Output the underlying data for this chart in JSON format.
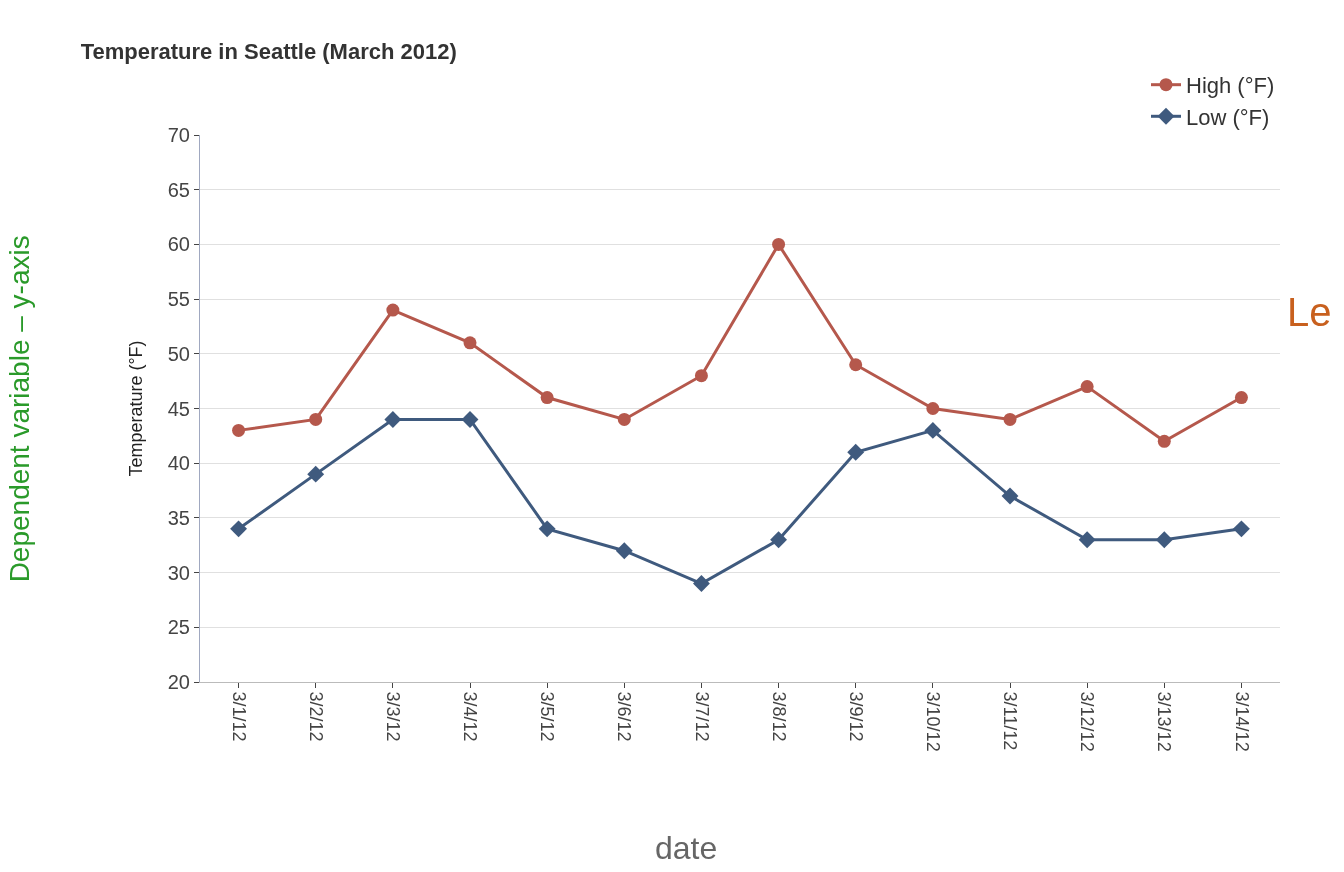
{
  "chart_data": {
    "type": "line",
    "title": "Temperature in Seattle (March 2012)",
    "ylabel": "Temperature (°F)",
    "categories": [
      "3/1/12",
      "3/2/12",
      "3/3/12",
      "3/4/12",
      "3/5/12",
      "3/6/12",
      "3/7/12",
      "3/8/12",
      "3/9/12",
      "3/10/12",
      "3/11/12",
      "3/12/12",
      "3/13/12",
      "3/14/12"
    ],
    "series": [
      {
        "name": "High (°F)",
        "color": "#b5584c",
        "marker": "circle",
        "values": [
          43,
          44,
          54,
          51,
          46,
          44,
          48,
          60,
          49,
          45,
          44,
          47,
          42,
          46
        ]
      },
      {
        "name": "Low (°F)",
        "color": "#3f5a7e",
        "marker": "diamond",
        "values": [
          34,
          39,
          44,
          44,
          34,
          32,
          29,
          33,
          41,
          43,
          37,
          33,
          33,
          34
        ]
      }
    ],
    "ylim": [
      20,
      70
    ],
    "yticks": [
      20,
      25,
      30,
      35,
      40,
      45,
      50,
      55,
      60,
      65,
      70
    ],
    "grid": "y",
    "legend": "top right",
    "line_style": "solid",
    "annotations": [
      "Dependent variable – y-axis",
      "Le",
      "date"
    ]
  }
}
